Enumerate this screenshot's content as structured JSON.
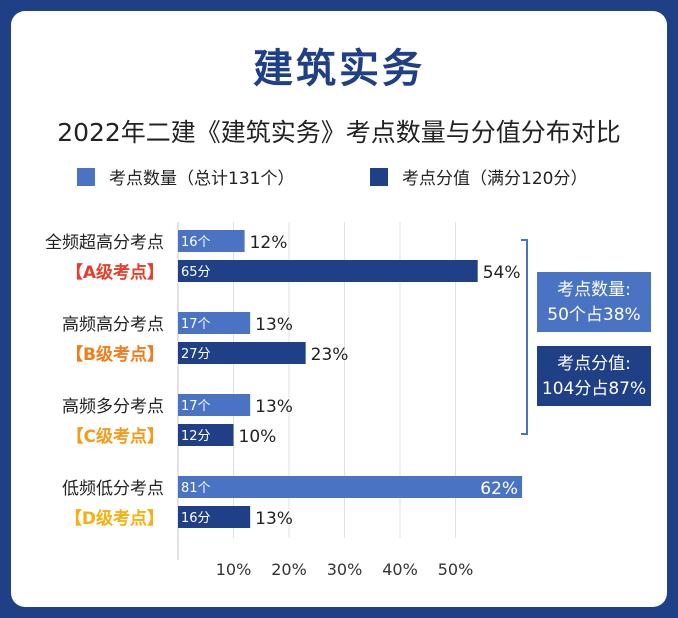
{
  "header": {
    "title": "建筑实务",
    "subtitle": "2022年二建《建筑实务》考点数量与分值分布对比"
  },
  "legend": [
    {
      "label": "考点数量（总计131个）",
      "color": "#4a73c4"
    },
    {
      "label": "考点分值（满分120分）",
      "color": "#1f3f86"
    }
  ],
  "summary": {
    "count_box": [
      "考点数量:",
      "50个占38%"
    ],
    "score_box": [
      "考点分值:",
      "104分占87%"
    ]
  },
  "chart_data": {
    "type": "bar",
    "orientation": "horizontal",
    "title": "2022年二建《建筑实务》考点数量与分值分布对比",
    "categories": [
      {
        "name": "全频超高分考点",
        "level": "【A级考点】",
        "level_color": "#e53f2b"
      },
      {
        "name": "高频高分考点",
        "level": "【B级考点】",
        "level_color": "#f07d1a"
      },
      {
        "name": "高频多分考点",
        "level": "【C级考点】",
        "level_color": "#f59a1b"
      },
      {
        "name": "低频低分考点",
        "level": "【D级考点】",
        "level_color": "#f6b010"
      }
    ],
    "series": [
      {
        "name": "考点数量（总计131个）",
        "color": "#4a73c4",
        "values": [
          12,
          13,
          13,
          62
        ],
        "inner_labels": [
          "16个",
          "17个",
          "17个",
          "81个"
        ],
        "value_labels": [
          "12%",
          "13%",
          "13%",
          "62%"
        ]
      },
      {
        "name": "考点分值（满分120分）",
        "color": "#1f3f86",
        "values": [
          54,
          23,
          10,
          13
        ],
        "inner_labels": [
          "65分",
          "27分",
          "12分",
          "16分"
        ],
        "value_labels": [
          "54%",
          "23%",
          "10%",
          "13%"
        ]
      }
    ],
    "x_ticks": [
      "10%",
      "20%",
      "30%",
      "40%",
      "50%"
    ],
    "xlim": [
      0,
      60
    ],
    "unit": "%",
    "grid": true
  }
}
